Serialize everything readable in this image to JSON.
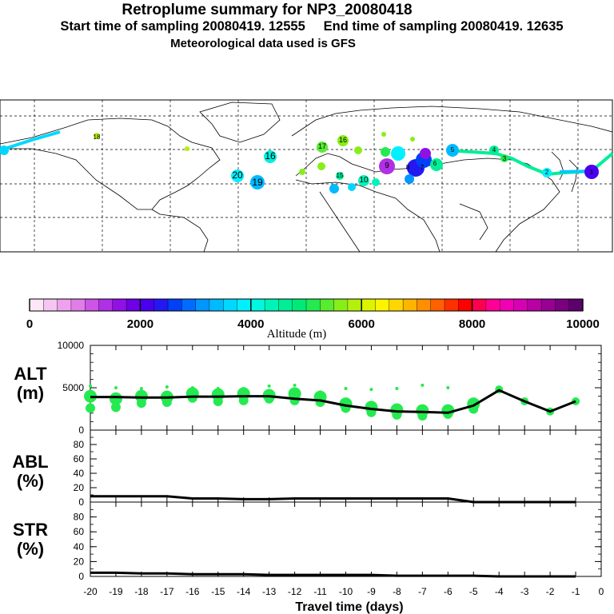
{
  "header": {
    "title": "Retroplume summary for NP3_20080418",
    "start_label": "Start time of sampling 20080419. 12555",
    "end_label": "End time of sampling 20080419. 12635",
    "met_label": "Meteorological data used is GFS"
  },
  "colorbar": {
    "ticks": [
      "0",
      "2000",
      "4000",
      "6000",
      "8000",
      "10000"
    ],
    "label": "Altitude (m)",
    "colors": [
      "#fde6f6",
      "#f6c6f2",
      "#eea2ee",
      "#e07ee8",
      "#cc55e6",
      "#b030e6",
      "#9010e6",
      "#6e00e6",
      "#4a00ee",
      "#2418f0",
      "#0040f6",
      "#006cff",
      "#0096ff",
      "#00baff",
      "#00d8ff",
      "#00f0ff",
      "#00f8e0",
      "#00f4b8",
      "#00ee96",
      "#00ea78",
      "#24ea50",
      "#58ec30",
      "#88ee18",
      "#b4f00c",
      "#ddf400",
      "#fff400",
      "#ffd600",
      "#ffb400",
      "#ff8e00",
      "#ff6000",
      "#ff3000",
      "#ff0000",
      "#ff0050",
      "#ff0096",
      "#f000b4",
      "#d800b4",
      "#b800a4",
      "#980094",
      "#7a0080",
      "#5c006c"
    ]
  },
  "map": {
    "plume_labels": [
      "20",
      "19",
      "16",
      "17",
      "16",
      "18",
      "15",
      "10",
      "9",
      "8",
      "7",
      "6",
      "5",
      "4",
      "3",
      "2",
      "1"
    ]
  },
  "chart_data": [
    {
      "type": "line",
      "panel": "ALT",
      "ylabel_line1": "ALT",
      "ylabel_line2": "(m)",
      "xlabel": "Travel time (days)",
      "xlim": [
        -20,
        0
      ],
      "ylim": [
        0,
        10000
      ],
      "yticks": [
        "10000",
        "5000",
        "0"
      ],
      "yticks_values": [
        10000,
        5000,
        0
      ],
      "x": [
        -20,
        -19,
        -18,
        -17,
        -16,
        -15,
        -14,
        -13,
        -12,
        -11,
        -10,
        -9,
        -8,
        -7,
        -6,
        -5,
        -4,
        -3,
        -2,
        -1
      ],
      "mean_altitude": [
        3900,
        3900,
        3850,
        3850,
        3950,
        3950,
        4000,
        4000,
        3700,
        3500,
        2900,
        2500,
        2200,
        2150,
        2050,
        2900,
        4700,
        3400,
        2200,
        3400
      ],
      "cluster_altitudes": [
        [
          2600,
          4000,
          5200
        ],
        [
          2700,
          3700,
          5000
        ],
        [
          3200,
          4000,
          4900
        ],
        [
          3300,
          3900,
          5100
        ],
        [
          3800,
          4300,
          5000
        ],
        [
          3400,
          4200,
          4900
        ],
        [
          3500,
          4300,
          4900
        ],
        [
          3700,
          4100,
          5200
        ],
        [
          3500,
          4300,
          5300
        ],
        [
          3300,
          3900,
          4500
        ],
        [
          2600,
          3100,
          4900
        ],
        [
          2100,
          2700,
          4800
        ],
        [
          1800,
          2400,
          4900
        ],
        [
          1700,
          2300,
          5300
        ],
        [
          1900,
          2300,
          5000
        ],
        [
          2500,
          3100,
          3600
        ],
        [
          4800
        ],
        [
          3400
        ],
        [
          2200
        ],
        [
          3400
        ]
      ]
    },
    {
      "type": "area",
      "panel": "ABL",
      "ylabel_line1": "ABL",
      "ylabel_line2": "(%)",
      "xlim": [
        -20,
        0
      ],
      "ylim": [
        0,
        100
      ],
      "yticks": [
        "80",
        "60",
        "40",
        "20",
        "0"
      ],
      "yticks_values": [
        80,
        60,
        40,
        20,
        0
      ],
      "x": [
        -20,
        -19,
        -18,
        -17,
        -16,
        -15,
        -14,
        -13,
        -12,
        -11,
        -10,
        -9,
        -8,
        -7,
        -6,
        -5,
        -4,
        -3,
        -2,
        -1
      ],
      "values": [
        8,
        8,
        8,
        8,
        5,
        5,
        4,
        4,
        5,
        5,
        5,
        5,
        5,
        5,
        5,
        0,
        0,
        0,
        0,
        0
      ]
    },
    {
      "type": "area",
      "panel": "STR",
      "ylabel_line1": "STR",
      "ylabel_line2": "(%)",
      "xlim": [
        -20,
        0
      ],
      "ylim": [
        0,
        100
      ],
      "yticks": [
        "80",
        "60",
        "40",
        "20",
        "0"
      ],
      "yticks_values": [
        80,
        60,
        40,
        20,
        0
      ],
      "x": [
        -20,
        -19,
        -18,
        -17,
        -16,
        -15,
        -14,
        -13,
        -12,
        -11,
        -10,
        -9,
        -8,
        -7,
        -6,
        -5,
        -4,
        -3,
        -2,
        -1
      ],
      "values": [
        5,
        5,
        4,
        4,
        3,
        3,
        3,
        2,
        2,
        2,
        2,
        2,
        1,
        1,
        1,
        1,
        0,
        0,
        0,
        0
      ],
      "xticks": [
        "-20",
        "-19",
        "-18",
        "-17",
        "-16",
        "-15",
        "-14",
        "-13",
        "-12",
        "-11",
        "-10",
        "-9",
        "-8",
        "-7",
        "-6",
        "-5",
        "-4",
        "-3",
        "-2",
        "-1",
        "0"
      ],
      "xticks_values": [
        -20,
        -19,
        -18,
        -17,
        -16,
        -15,
        -14,
        -13,
        -12,
        -11,
        -10,
        -9,
        -8,
        -7,
        -6,
        -5,
        -4,
        -3,
        -2,
        -1,
        0
      ]
    }
  ]
}
